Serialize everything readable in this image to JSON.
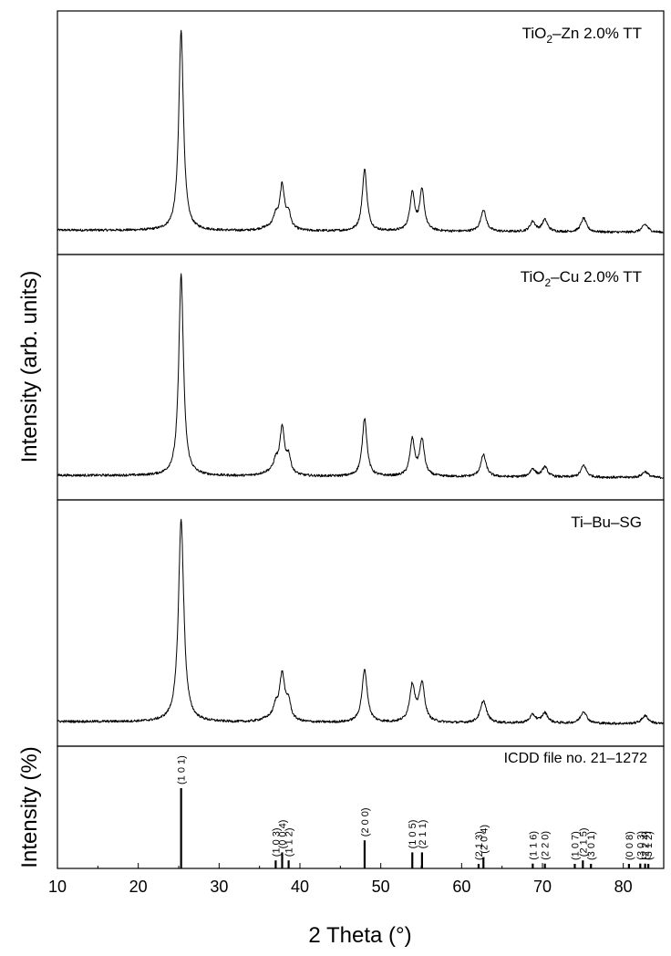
{
  "chart_data": {
    "type": "line",
    "xlabel": "2 Theta (°)",
    "ylabel_top": "Intensity (arb. units)",
    "ylabel_bottom": "Intensity (%)",
    "xlim": [
      10,
      85
    ],
    "x_ticks": [
      10,
      20,
      30,
      40,
      50,
      60,
      70,
      80
    ],
    "panels": [
      {
        "label_main": "TiO",
        "label_sub": "2",
        "label_rest": "–Zn 2.0% TT",
        "baseline": 0.03,
        "hump": [
          37.0,
          2.0,
          0.02
        ],
        "peaks": [
          [
            25.3,
            1.0,
            0.35
          ],
          [
            37.0,
            0.05,
            0.3
          ],
          [
            37.8,
            0.21,
            0.35
          ],
          [
            38.6,
            0.07,
            0.3
          ],
          [
            48.0,
            0.31,
            0.35
          ],
          [
            53.9,
            0.19,
            0.35
          ],
          [
            55.1,
            0.2,
            0.35
          ],
          [
            62.7,
            0.11,
            0.4
          ],
          [
            68.8,
            0.05,
            0.4
          ],
          [
            70.3,
            0.06,
            0.4
          ],
          [
            75.1,
            0.07,
            0.4
          ],
          [
            82.7,
            0.04,
            0.45
          ]
        ]
      },
      {
        "label_main": "TiO",
        "label_sub": "2",
        "label_rest": "–Cu 2.0% TT",
        "baseline": 0.03,
        "hump": [
          37.0,
          2.0,
          0.02
        ],
        "peaks": [
          [
            25.3,
            1.0,
            0.35
          ],
          [
            37.0,
            0.05,
            0.3
          ],
          [
            37.8,
            0.22,
            0.35
          ],
          [
            38.6,
            0.08,
            0.3
          ],
          [
            48.0,
            0.29,
            0.35
          ],
          [
            53.9,
            0.18,
            0.35
          ],
          [
            55.1,
            0.18,
            0.35
          ],
          [
            62.7,
            0.11,
            0.4
          ],
          [
            68.8,
            0.04,
            0.4
          ],
          [
            70.3,
            0.05,
            0.4
          ],
          [
            75.1,
            0.06,
            0.4
          ],
          [
            82.7,
            0.03,
            0.45
          ]
        ]
      },
      {
        "label_main": "Ti–Bu–SG",
        "label_sub": "",
        "label_rest": "",
        "baseline": 0.03,
        "hump": [
          37.0,
          2.0,
          0.02
        ],
        "peaks": [
          [
            25.3,
            1.0,
            0.4
          ],
          [
            37.0,
            0.05,
            0.3
          ],
          [
            37.8,
            0.22,
            0.4
          ],
          [
            38.6,
            0.08,
            0.3
          ],
          [
            48.0,
            0.26,
            0.4
          ],
          [
            53.9,
            0.18,
            0.4
          ],
          [
            55.1,
            0.19,
            0.4
          ],
          [
            62.7,
            0.11,
            0.45
          ],
          [
            68.8,
            0.04,
            0.45
          ],
          [
            70.3,
            0.05,
            0.45
          ],
          [
            75.1,
            0.06,
            0.45
          ],
          [
            82.7,
            0.04,
            0.5
          ]
        ]
      }
    ],
    "reference": {
      "label": "ICDD file no. 21–1272",
      "lines": [
        {
          "x": 25.3,
          "intensity": 100,
          "hkl": "(1 0 1)"
        },
        {
          "x": 37.0,
          "intensity": 10,
          "hkl": "(1 0 3)"
        },
        {
          "x": 37.8,
          "intensity": 20,
          "hkl": "(0 0 4)"
        },
        {
          "x": 38.6,
          "intensity": 10,
          "hkl": "(1 1 2)"
        },
        {
          "x": 48.0,
          "intensity": 35,
          "hkl": "(2 0 0)"
        },
        {
          "x": 53.9,
          "intensity": 20,
          "hkl": "(1 0 5)"
        },
        {
          "x": 55.1,
          "intensity": 20,
          "hkl": "(2 1 1)"
        },
        {
          "x": 62.1,
          "intensity": 4,
          "hkl": "(2 1 3)"
        },
        {
          "x": 62.7,
          "intensity": 14,
          "hkl": "(2 0 4)"
        },
        {
          "x": 68.8,
          "intensity": 6,
          "hkl": "(1 1 6)"
        },
        {
          "x": 70.3,
          "intensity": 6,
          "hkl": "(2 2 0)"
        },
        {
          "x": 74.0,
          "intensity": 2,
          "hkl": "(1 0 7)"
        },
        {
          "x": 75.0,
          "intensity": 10,
          "hkl": "(2 1 5)"
        },
        {
          "x": 76.0,
          "intensity": 4,
          "hkl": "(3 0 1)"
        },
        {
          "x": 80.7,
          "intensity": 2,
          "hkl": "(0 0 8)"
        },
        {
          "x": 82.1,
          "intensity": 6,
          "hkl": "(3 0 3)"
        },
        {
          "x": 82.7,
          "intensity": 6,
          "hkl": "(2 2 4)"
        },
        {
          "x": 83.1,
          "intensity": 4,
          "hkl": "(3 1 2)"
        }
      ]
    }
  }
}
